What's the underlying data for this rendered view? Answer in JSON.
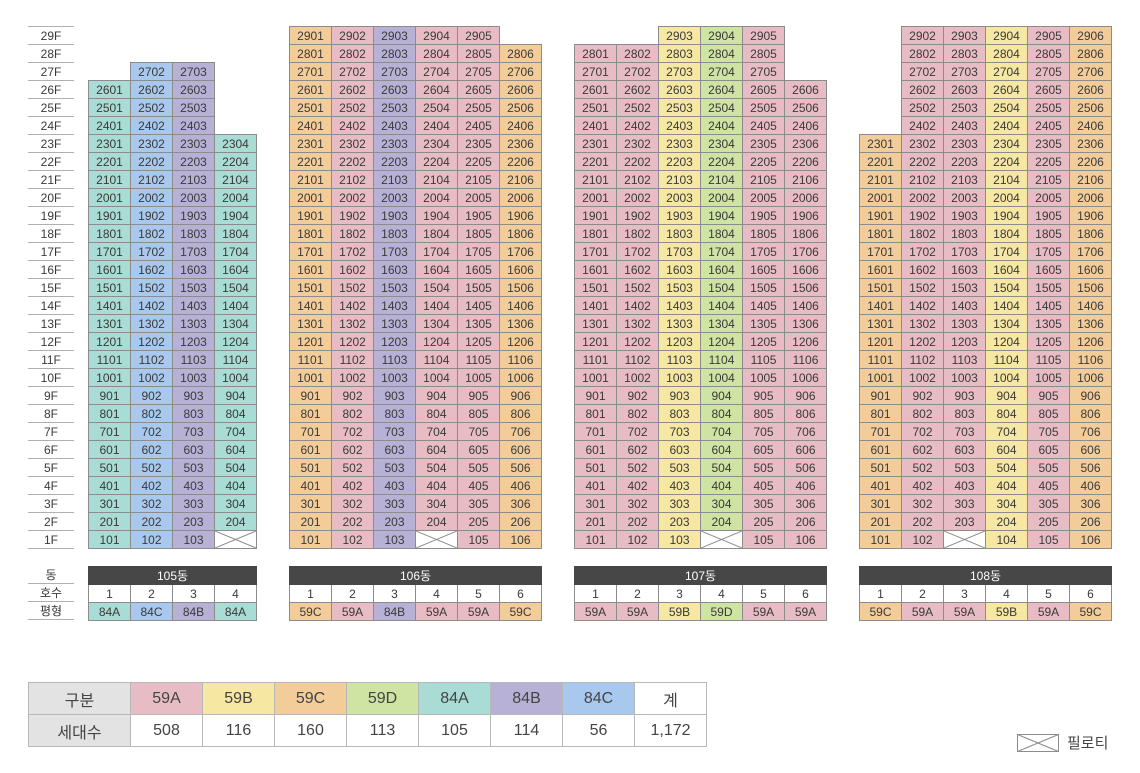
{
  "floors": [
    "29F",
    "28F",
    "27F",
    "26F",
    "25F",
    "24F",
    "23F",
    "22F",
    "21F",
    "20F",
    "19F",
    "18F",
    "17F",
    "16F",
    "15F",
    "14F",
    "13F",
    "12F",
    "11F",
    "10F",
    "9F",
    "8F",
    "7F",
    "6F",
    "5F",
    "4F",
    "3F",
    "2F",
    "1F"
  ],
  "colors": {
    "59A": "#e8bcc4",
    "59B": "#f6e7a2",
    "59C": "#f3cd99",
    "59D": "#cfe3a3",
    "84A": "#a9dcd4",
    "84B": "#b7b1d6",
    "84C": "#a9c8ed",
    "piloti": "#ffffff"
  },
  "row_labels": {
    "dong": "동",
    "unit": "호수",
    "type": "평형"
  },
  "buildings": [
    {
      "name": "105동",
      "lines": [
        {
          "unit_no": "1",
          "type": "84A",
          "top": 26,
          "piloti": false
        },
        {
          "unit_no": "2",
          "type": "84C",
          "top": 27,
          "piloti": false
        },
        {
          "unit_no": "3",
          "type": "84B",
          "top": 27,
          "piloti": false
        },
        {
          "unit_no": "4",
          "type": "84A",
          "top": 23,
          "piloti": true
        }
      ]
    },
    {
      "name": "106동",
      "lines": [
        {
          "unit_no": "1",
          "type": "59C",
          "top": 29,
          "piloti": false
        },
        {
          "unit_no": "2",
          "type": "59A",
          "top": 29,
          "piloti": false
        },
        {
          "unit_no": "3",
          "type": "84B",
          "top": 29,
          "piloti": false
        },
        {
          "unit_no": "4",
          "type": "59A",
          "top": 29,
          "piloti": true
        },
        {
          "unit_no": "5",
          "type": "59A",
          "top": 29,
          "piloti": false
        },
        {
          "unit_no": "6",
          "type": "59C",
          "top": 28,
          "piloti": false
        }
      ]
    },
    {
      "name": "107동",
      "lines": [
        {
          "unit_no": "1",
          "type": "59A",
          "top": 28,
          "piloti": false
        },
        {
          "unit_no": "2",
          "type": "59A",
          "top": 28,
          "piloti": false
        },
        {
          "unit_no": "3",
          "type": "59B",
          "top": 29,
          "piloti": false
        },
        {
          "unit_no": "4",
          "type": "59D",
          "top": 29,
          "piloti": true
        },
        {
          "unit_no": "5",
          "type": "59A",
          "top": 29,
          "piloti": false
        },
        {
          "unit_no": "6",
          "type": "59A",
          "top": 26,
          "piloti": false
        }
      ]
    },
    {
      "name": "108동",
      "lines": [
        {
          "unit_no": "1",
          "type": "59C",
          "top": 23,
          "piloti": false
        },
        {
          "unit_no": "2",
          "type": "59A",
          "top": 29,
          "piloti": false
        },
        {
          "unit_no": "3",
          "type": "59A",
          "top": 29,
          "piloti": true
        },
        {
          "unit_no": "4",
          "type": "59B",
          "top": 29,
          "piloti": false
        },
        {
          "unit_no": "5",
          "type": "59A",
          "top": 29,
          "piloti": false
        },
        {
          "unit_no": "6",
          "type": "59C",
          "top": 29,
          "piloti": false
        }
      ]
    }
  ],
  "summary": {
    "header_label": "구분",
    "count_label": "세대수",
    "columns": [
      {
        "type": "59A",
        "count": "508"
      },
      {
        "type": "59B",
        "count": "116"
      },
      {
        "type": "59C",
        "count": "160"
      },
      {
        "type": "59D",
        "count": "113"
      },
      {
        "type": "84A",
        "count": "105"
      },
      {
        "type": "84B",
        "count": "114"
      },
      {
        "type": "84C",
        "count": "56"
      },
      {
        "type": "계",
        "count": "1,172"
      }
    ]
  },
  "legend": {
    "piloti_label": "필로티"
  }
}
